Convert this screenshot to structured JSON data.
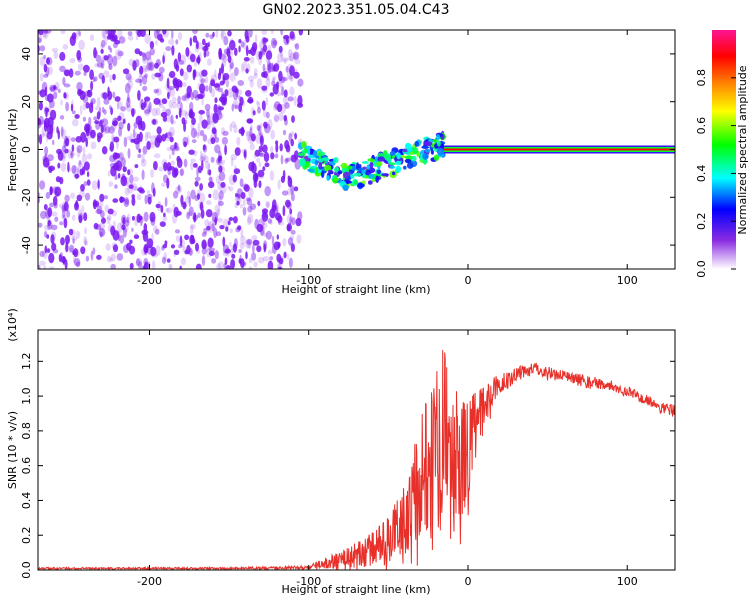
{
  "title": "GN02.2023.351.05.04.C43",
  "colors": {
    "snr_line": "#e8302a",
    "scatter_noise": "#7a18f0",
    "colormap": [
      "#ffffff",
      "#8a2be2",
      "#0000ff",
      "#00ffff",
      "#00ff00",
      "#ffff00",
      "#ff7f00",
      "#ff0000",
      "#ff1493"
    ]
  },
  "chart_data": [
    {
      "type": "heatmap",
      "xlabel": "Height of straight line (km)",
      "ylabel": "Frequency (Hz)",
      "xlim": [
        -270,
        130
      ],
      "ylim": [
        -50,
        50
      ],
      "x_ticks": [
        -200,
        -100,
        0,
        100
      ],
      "x_tick_labels": [
        "-200",
        "-100",
        "0",
        "100"
      ],
      "y_ticks": [
        -40,
        -20,
        0,
        20,
        40
      ],
      "y_tick_labels": [
        "-40",
        "-20",
        "0",
        "20",
        "40"
      ],
      "features": {
        "broadband_noise_x_range": [
          -270,
          -105
        ],
        "scattered_band": {
          "x_range": [
            -105,
            -15
          ],
          "freq_center_hz": [
            -2,
            -12,
            -5,
            2
          ]
        },
        "steady_line": {
          "x_range": [
            -15,
            130
          ],
          "freq_hz": 0,
          "normalized_amplitude": 0.9
        }
      },
      "colorbar": {
        "label": "Normalized spectral amplitude",
        "range": [
          0,
          1
        ],
        "ticks": [
          0.0,
          0.2,
          0.4,
          0.6,
          0.8
        ],
        "tick_labels": [
          "0.0",
          "0.2",
          "0.4",
          "0.6",
          "0.8"
        ]
      }
    },
    {
      "type": "line",
      "xlabel": "Height of straight line (km)",
      "ylabel": "SNR (10 * v/v)",
      "y_multiplier": "(x10⁴)",
      "xlim": [
        -270,
        130
      ],
      "ylim": [
        0,
        1.38
      ],
      "x_ticks": [
        -200,
        -100,
        0,
        100
      ],
      "x_tick_labels": [
        "-200",
        "-100",
        "0",
        "100"
      ],
      "y_ticks": [
        0.0,
        0.2,
        0.4,
        0.6,
        0.8,
        1.0,
        1.2
      ],
      "y_tick_labels": [
        "0.0",
        "0.2",
        "0.4",
        "0.6",
        "0.8",
        "1.0",
        "1.2"
      ],
      "series": [
        {
          "x": [
            -270,
            -200,
            -150,
            -100,
            -90,
            -80,
            -70,
            -60,
            -50,
            -40,
            -35,
            -30,
            -25,
            -20,
            -15,
            -10,
            -5,
            0,
            10,
            20,
            30,
            40,
            50,
            60,
            70,
            80,
            90,
            100,
            110,
            120,
            130
          ],
          "y": [
            0.01,
            0.01,
            0.01,
            0.015,
            0.04,
            0.06,
            0.09,
            0.12,
            0.18,
            0.3,
            0.42,
            0.55,
            0.68,
            0.78,
            0.83,
            0.72,
            0.62,
            0.7,
            0.95,
            1.08,
            1.13,
            1.16,
            1.14,
            1.12,
            1.1,
            1.08,
            1.06,
            1.03,
            0.99,
            0.95,
            0.92
          ],
          "spread": [
            0.005,
            0.005,
            0.005,
            0.01,
            0.03,
            0.05,
            0.08,
            0.1,
            0.14,
            0.2,
            0.28,
            0.36,
            0.45,
            0.5,
            0.48,
            0.4,
            0.35,
            0.3,
            0.12,
            0.06,
            0.04,
            0.04,
            0.035,
            0.03,
            0.03,
            0.03,
            0.03,
            0.03,
            0.03,
            0.03,
            0.03
          ]
        }
      ]
    }
  ]
}
